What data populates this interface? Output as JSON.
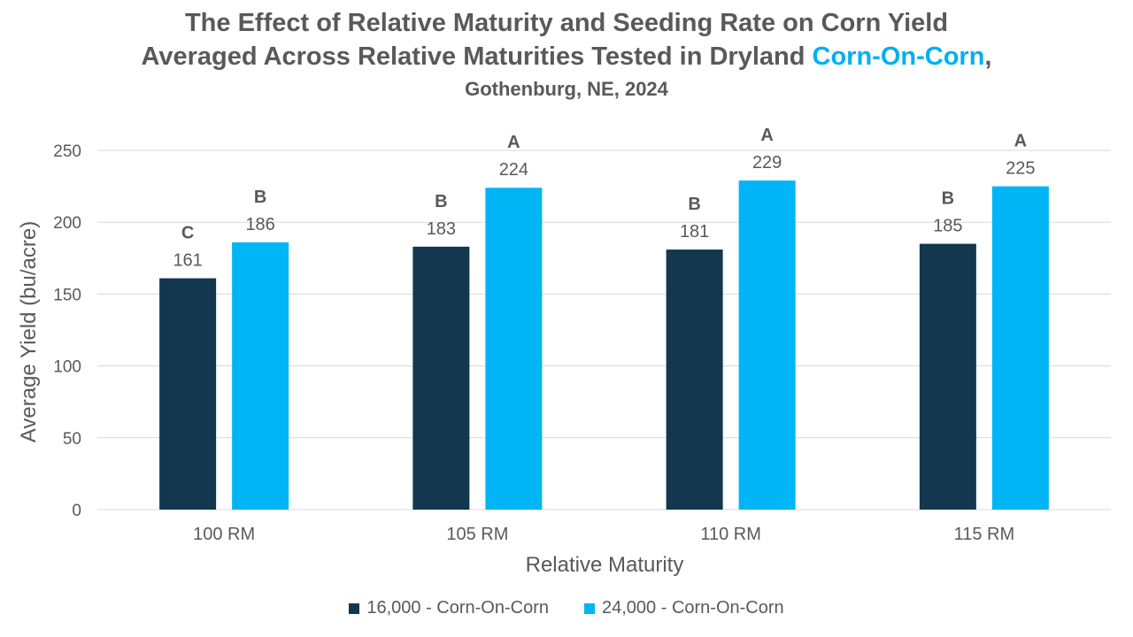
{
  "title": {
    "line1": "The Effect of Relative Maturity and Seeding Rate on Corn Yield",
    "line2_prefix": "Averaged Across Relative Maturities Tested in Dryland ",
    "line2_highlight": "Corn-On-Corn",
    "line2_suffix": ",",
    "line3": "Gothenburg, NE, 2024"
  },
  "colors": {
    "series1": "#12374F",
    "series2": "#00B5F5",
    "grid": "#D9D9D9",
    "text": "#595959",
    "highlight": "#00B0F0"
  },
  "chart_data": {
    "type": "bar",
    "title": "The Effect of Relative Maturity and Seeding Rate on Corn Yield Averaged Across Relative Maturities Tested in Dryland Corn-On-Corn, Gothenburg, NE, 2024",
    "xlabel": "Relative Maturity",
    "ylabel": "Average Yield (bu/acre)",
    "categories": [
      "100 RM",
      "105 RM",
      "110 RM",
      "115 RM"
    ],
    "ylim": [
      0,
      250
    ],
    "yticks": [
      0,
      50,
      100,
      150,
      200,
      250
    ],
    "grid": true,
    "legend_position": "bottom",
    "series": [
      {
        "name": "16,000 - Corn-On-Corn",
        "values": [
          161,
          183,
          181,
          185
        ],
        "letters": [
          "C",
          "B",
          "B",
          "B"
        ]
      },
      {
        "name": "24,000 - Corn-On-Corn",
        "values": [
          186,
          224,
          229,
          225
        ],
        "letters": [
          "B",
          "A",
          "A",
          "A"
        ]
      }
    ]
  }
}
